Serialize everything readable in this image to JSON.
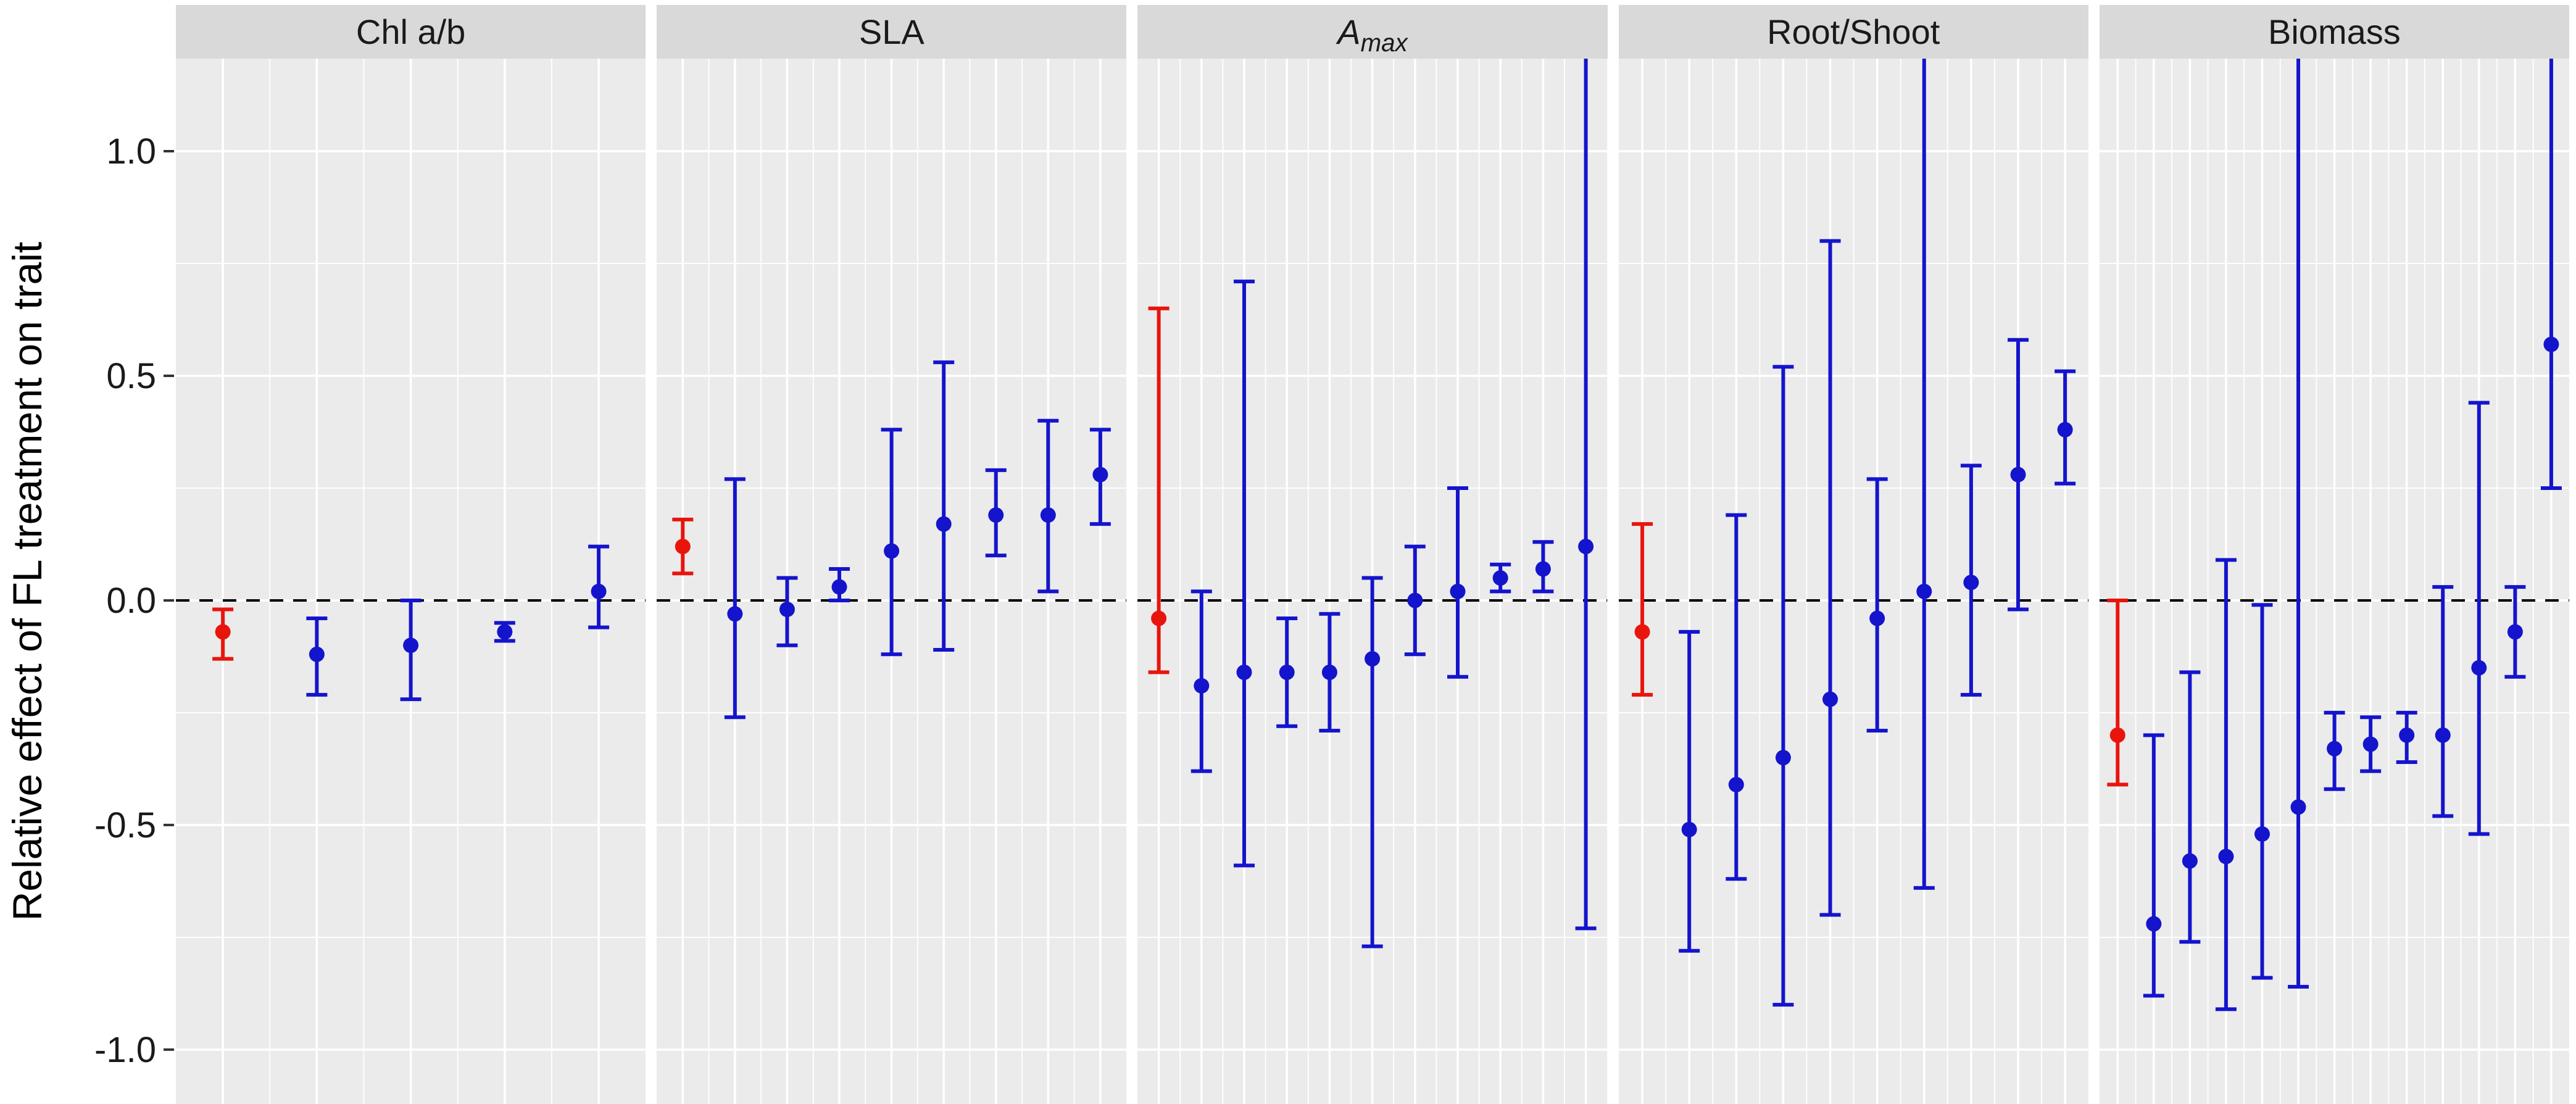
{
  "chart_data": {
    "type": "scatter",
    "subtype": "faceted-point-range-forest-plot",
    "title": "",
    "ylabel": "Relative effect of FL treatment on trait",
    "xlabel": "",
    "ylim": [
      -1.121,
      1.206
    ],
    "yticks": [
      1.0,
      0.5,
      0.0,
      -0.5,
      -1.0
    ],
    "ytick_labels": [
      "1.0",
      "0.5",
      "0.0",
      "-0.5",
      "-1.0"
    ],
    "yticks_minor": [
      0.75,
      0.25,
      -0.25,
      -0.75
    ],
    "reference_line_y": 0,
    "grid": true,
    "legend": "none",
    "colors": {
      "red": "#E8150D",
      "blue": "#1414CD",
      "panel_bg": "#EBEBEB",
      "strip_bg": "#D9D9D9",
      "grid": "#FFFFFF",
      "text": "#1A1A1A",
      "tick": "#333333",
      "reference_line": "#000000"
    },
    "panels": [
      {
        "label": "Chl a/b",
        "points": [
          {
            "color": "red",
            "y": -0.07,
            "lo": -0.13,
            "hi": -0.02
          },
          {
            "color": "blue",
            "y": -0.12,
            "lo": -0.21,
            "hi": -0.04
          },
          {
            "color": "blue",
            "y": -0.1,
            "lo": -0.22,
            "hi": 0.0
          },
          {
            "color": "blue",
            "y": -0.07,
            "lo": -0.09,
            "hi": -0.05
          },
          {
            "color": "blue",
            "y": 0.02,
            "lo": -0.06,
            "hi": 0.12
          }
        ]
      },
      {
        "label": "SLA",
        "points": [
          {
            "color": "red",
            "y": 0.12,
            "lo": 0.06,
            "hi": 0.18
          },
          {
            "color": "blue",
            "y": -0.03,
            "lo": -0.26,
            "hi": 0.27
          },
          {
            "color": "blue",
            "y": -0.02,
            "lo": -0.1,
            "hi": 0.05
          },
          {
            "color": "blue",
            "y": 0.03,
            "lo": 0.0,
            "hi": 0.07
          },
          {
            "color": "blue",
            "y": 0.11,
            "lo": -0.12,
            "hi": 0.38
          },
          {
            "color": "blue",
            "y": 0.17,
            "lo": -0.11,
            "hi": 0.53
          },
          {
            "color": "blue",
            "y": 0.19,
            "lo": 0.1,
            "hi": 0.29
          },
          {
            "color": "blue",
            "y": 0.19,
            "lo": 0.02,
            "hi": 0.4
          },
          {
            "color": "blue",
            "y": 0.28,
            "lo": 0.17,
            "hi": 0.38
          }
        ]
      },
      {
        "label": "A_max",
        "points": [
          {
            "color": "red",
            "y": -0.04,
            "lo": -0.16,
            "hi": 0.65
          },
          {
            "color": "blue",
            "y": -0.19,
            "lo": -0.38,
            "hi": 0.02
          },
          {
            "color": "blue",
            "y": -0.16,
            "lo": -0.59,
            "hi": 0.71
          },
          {
            "color": "blue",
            "y": -0.16,
            "lo": -0.28,
            "hi": -0.04
          },
          {
            "color": "blue",
            "y": -0.16,
            "lo": -0.29,
            "hi": -0.03
          },
          {
            "color": "blue",
            "y": -0.13,
            "lo": -0.77,
            "hi": 0.05
          },
          {
            "color": "blue",
            "y": 0.0,
            "lo": -0.12,
            "hi": 0.12
          },
          {
            "color": "blue",
            "y": 0.02,
            "lo": -0.17,
            "hi": 0.25
          },
          {
            "color": "blue",
            "y": 0.05,
            "lo": 0.02,
            "hi": 0.08
          },
          {
            "color": "blue",
            "y": 0.07,
            "lo": 0.02,
            "hi": 0.13
          },
          {
            "color": "blue",
            "y": 0.12,
            "lo": -0.73,
            "hi": 1.35,
            "clipped_top": true
          }
        ]
      },
      {
        "label": "Root/Shoot",
        "points": [
          {
            "color": "red",
            "y": -0.07,
            "lo": -0.21,
            "hi": 0.17
          },
          {
            "color": "blue",
            "y": -0.51,
            "lo": -0.78,
            "hi": -0.07
          },
          {
            "color": "blue",
            "y": -0.41,
            "lo": -0.62,
            "hi": 0.19
          },
          {
            "color": "blue",
            "y": -0.35,
            "lo": -0.9,
            "hi": 0.52
          },
          {
            "color": "blue",
            "y": -0.22,
            "lo": -0.7,
            "hi": 0.8
          },
          {
            "color": "blue",
            "y": -0.04,
            "lo": -0.29,
            "hi": 0.27
          },
          {
            "color": "blue",
            "y": 0.02,
            "lo": -0.64,
            "hi": 1.35,
            "clipped_top": true
          },
          {
            "color": "blue",
            "y": 0.04,
            "lo": -0.21,
            "hi": 0.3
          },
          {
            "color": "blue",
            "y": 0.28,
            "lo": -0.02,
            "hi": 0.58
          },
          {
            "color": "blue",
            "y": 0.38,
            "lo": 0.26,
            "hi": 0.51
          }
        ]
      },
      {
        "label": "Biomass",
        "points": [
          {
            "color": "red",
            "y": -0.3,
            "lo": -0.41,
            "hi": 0.0
          },
          {
            "color": "blue",
            "y": -0.72,
            "lo": -0.88,
            "hi": -0.3
          },
          {
            "color": "blue",
            "y": -0.58,
            "lo": -0.76,
            "hi": -0.16
          },
          {
            "color": "blue",
            "y": -0.57,
            "lo": -0.91,
            "hi": 0.09
          },
          {
            "color": "blue",
            "y": -0.52,
            "lo": -0.84,
            "hi": -0.01
          },
          {
            "color": "blue",
            "y": -0.46,
            "lo": -0.86,
            "hi": 1.35,
            "clipped_top": true
          },
          {
            "color": "blue",
            "y": -0.33,
            "lo": -0.42,
            "hi": -0.25
          },
          {
            "color": "blue",
            "y": -0.32,
            "lo": -0.38,
            "hi": -0.26
          },
          {
            "color": "blue",
            "y": -0.3,
            "lo": -0.36,
            "hi": -0.25
          },
          {
            "color": "blue",
            "y": -0.3,
            "lo": -0.48,
            "hi": 0.03
          },
          {
            "color": "blue",
            "y": -0.15,
            "lo": -0.52,
            "hi": 0.44
          },
          {
            "color": "blue",
            "y": -0.07,
            "lo": -0.17,
            "hi": 0.03
          },
          {
            "color": "blue",
            "y": 0.57,
            "lo": 0.25,
            "hi": 1.35,
            "clipped_top": true
          }
        ]
      }
    ]
  }
}
